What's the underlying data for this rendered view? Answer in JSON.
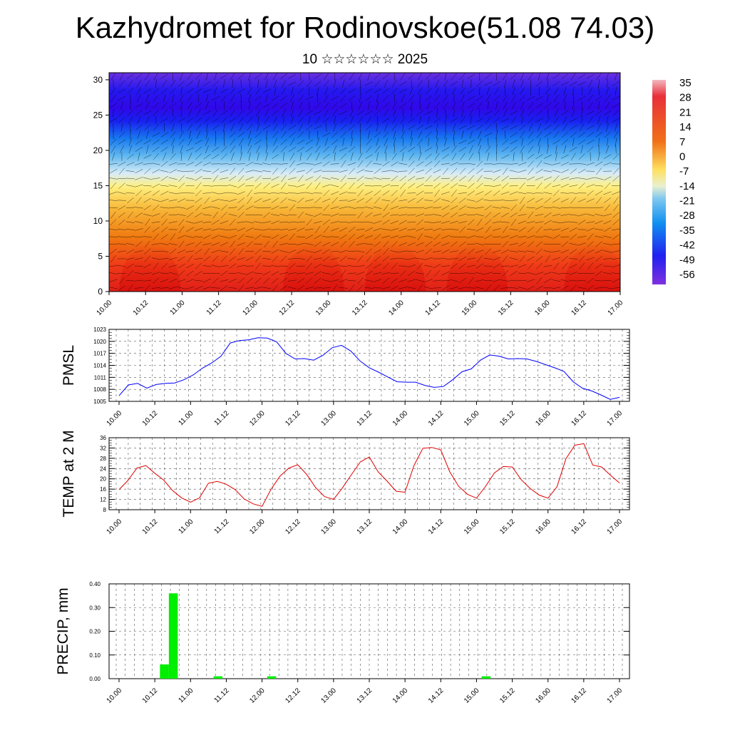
{
  "header": {
    "title": "Kazhydromet for Rodinovskoe(51.08 74.03)",
    "subtitle": "10 ☆☆☆☆☆☆ 2025"
  },
  "chart_data": [
    {
      "type": "heatmap",
      "title": "",
      "x_tick_labels": [
        "10.00",
        "10.12",
        "11.00",
        "11.12",
        "12.00",
        "12.12",
        "13.00",
        "13.12",
        "14.00",
        "14.12",
        "15.00",
        "15.12",
        "16.00",
        "16.12",
        "17.00"
      ],
      "y_ticks": [
        0,
        5,
        10,
        15,
        20,
        25,
        30
      ],
      "ylim": [
        0,
        31
      ],
      "colorbar_labels": [
        "35",
        "28",
        "21",
        "14",
        "7",
        "0",
        "-7",
        "-14",
        "-21",
        "-28",
        "-35",
        "-42",
        "-49",
        "-56"
      ],
      "colors": {
        "warm": "#e0201b",
        "mid": "#ffe07a",
        "cold": "#2000f0",
        "top": "#6a18c8"
      },
      "description_levels": [
        {
          "height": 0,
          "value": 25
        },
        {
          "height": 5,
          "value": 20
        },
        {
          "height": 10,
          "value": 8
        },
        {
          "height": 15,
          "value": -10
        },
        {
          "height": 20,
          "value": -35
        },
        {
          "height": 25,
          "value": -56
        },
        {
          "height": 30,
          "value": -48
        }
      ]
    },
    {
      "type": "line",
      "ylabel": "PMSL",
      "x_tick_labels": [
        "10.00",
        "10.12",
        "11.00",
        "11.12",
        "12.00",
        "12.12",
        "13.00",
        "13.12",
        "14.00",
        "14.12",
        "15.00",
        "15.12",
        "16.00",
        "16.12",
        "17.00"
      ],
      "y_ticks": [
        1005,
        1008,
        1011,
        1014,
        1017,
        1020,
        1023
      ],
      "ylim": [
        1005,
        1023
      ],
      "color": "#0000ff",
      "series": [
        {
          "values": [
            1006.4,
            1009.1,
            1009.5,
            1008.3,
            1009.2,
            1009.5,
            1009.6,
            1010.4,
            1011.6,
            1013.3,
            1014.6,
            1016.3,
            1019.6,
            1020.2,
            1020.4,
            1020.9,
            1020.8,
            1019.9,
            1017.0,
            1015.6,
            1015.7,
            1015.3,
            1016.5,
            1018.4,
            1019.0,
            1017.6,
            1015.1,
            1013.4,
            1012.3,
            1011.1,
            1009.9,
            1009.8,
            1009.8,
            1009.0,
            1008.5,
            1008.7,
            1010.4,
            1012.4,
            1013.1,
            1015.3,
            1016.6,
            1016.3,
            1015.6,
            1015.7,
            1015.6,
            1015.0,
            1014.2,
            1013.4,
            1012.5,
            1009.9,
            1008.3,
            1007.6,
            1006.6,
            1005.5,
            1006.0
          ]
        }
      ]
    },
    {
      "type": "line",
      "ylabel": "TEMP at 2 M",
      "x_tick_labels": [
        "10.00",
        "10.12",
        "11.00",
        "11.12",
        "12.00",
        "12.12",
        "13.00",
        "13.12",
        "14.00",
        "14.12",
        "15.00",
        "15.12",
        "16.00",
        "16.12",
        "17.00"
      ],
      "y_ticks": [
        8,
        12,
        16,
        20,
        24,
        28,
        32,
        36
      ],
      "ylim": [
        8,
        36
      ],
      "color": "#e00000",
      "series": [
        {
          "values": [
            15.8,
            19.4,
            24.2,
            25.2,
            22.2,
            19.5,
            15.4,
            12.6,
            10.9,
            12.6,
            18.3,
            19.0,
            17.9,
            15.8,
            12.2,
            10.3,
            9.3,
            15.9,
            21.0,
            24.2,
            25.5,
            21.7,
            16.6,
            13.1,
            12.0,
            16.5,
            21.6,
            26.6,
            28.5,
            22.7,
            19.1,
            15.2,
            14.8,
            25.2,
            31.9,
            32.2,
            31.3,
            22.8,
            17.1,
            14.0,
            12.5,
            17.0,
            22.3,
            24.8,
            24.6,
            19.7,
            16.3,
            13.7,
            12.5,
            16.9,
            27.8,
            33.1,
            33.7,
            25.4,
            24.6,
            21.4,
            18.4
          ]
        }
      ]
    },
    {
      "type": "bar",
      "ylabel": "PRECIP, mm",
      "x_tick_labels": [
        "10.00",
        "10.12",
        "11.00",
        "11.12",
        "12.00",
        "12.12",
        "13.00",
        "13.12",
        "14.00",
        "14.12",
        "15.00",
        "15.12",
        "16.00",
        "16.12",
        "17.00"
      ],
      "y_ticks": [
        "0.00",
        "0.10",
        "0.20",
        "0.30",
        "0.40"
      ],
      "ylim": [
        0,
        0.4
      ],
      "color": "#00ee00",
      "bars": [
        {
          "step": 3,
          "value": 0.06
        },
        {
          "step": 4,
          "value": 0.36
        },
        {
          "step": 9,
          "value": 0.01
        },
        {
          "step": 15,
          "value": 0.01
        },
        {
          "step": 39,
          "value": 0.01
        }
      ]
    }
  ]
}
